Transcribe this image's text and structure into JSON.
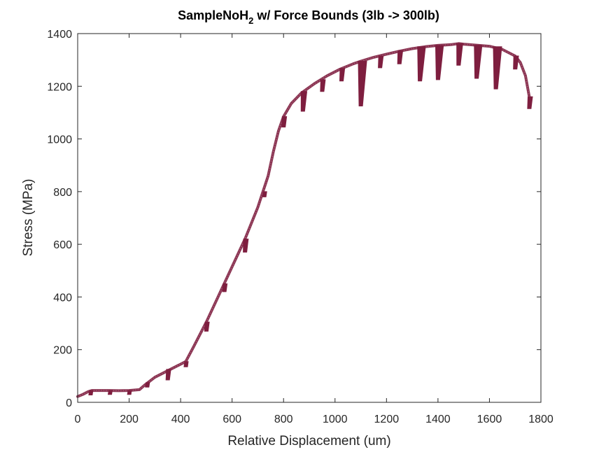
{
  "chart_data": {
    "type": "line",
    "title_parts": {
      "before_sub": "SampleNoH",
      "sub": "2",
      "after_sub": " w/ Force Bounds (3lb -> 300lb)"
    },
    "xlabel": "Relative Displacement (um)",
    "ylabel": "Stress (MPa)",
    "xlim": [
      0,
      1800
    ],
    "ylim": [
      0,
      1400
    ],
    "xticks": [
      0,
      200,
      400,
      600,
      800,
      1000,
      1200,
      1400,
      1600,
      1800
    ],
    "yticks": [
      0,
      200,
      400,
      600,
      800,
      1000,
      1200,
      1400
    ],
    "xtick_labels": [
      "0",
      "200",
      "400",
      "600",
      "800",
      "1000",
      "1200",
      "1400",
      "1600",
      "1800"
    ],
    "ytick_labels": [
      "0",
      "200",
      "400",
      "600",
      "800",
      "1000",
      "1200",
      "1400"
    ],
    "grid": false,
    "legend": "none",
    "series": [
      {
        "color": "#7e1e3f",
        "x": [
          0,
          20,
          40,
          55,
          80,
          120,
          160,
          200,
          240,
          260,
          300,
          350,
          380,
          420,
          450,
          500,
          550,
          600,
          650,
          700,
          740,
          760,
          780,
          800,
          830,
          870,
          920,
          970,
          1020,
          1070,
          1100,
          1150,
          1200,
          1250,
          1300,
          1350,
          1400,
          1450,
          1480,
          1500,
          1550,
          1600,
          1650,
          1700,
          1720,
          1740,
          1755
        ],
        "y": [
          22,
          30,
          40,
          45,
          45,
          45,
          44,
          45,
          48,
          65,
          95,
          120,
          135,
          155,
          210,
          305,
          410,
          515,
          620,
          740,
          860,
          950,
          1030,
          1085,
          1135,
          1175,
          1210,
          1240,
          1265,
          1285,
          1295,
          1310,
          1322,
          1333,
          1343,
          1350,
          1355,
          1358,
          1362,
          1360,
          1356,
          1352,
          1340,
          1315,
          1290,
          1240,
          1160
        ]
      }
    ],
    "unloading_dips": [
      {
        "x": 50,
        "from": 45,
        "to": 28
      },
      {
        "x": 125,
        "from": 45,
        "to": 30
      },
      {
        "x": 200,
        "from": 45,
        "to": 30
      },
      {
        "x": 270,
        "from": 75,
        "to": 58
      },
      {
        "x": 350,
        "from": 125,
        "to": 85
      },
      {
        "x": 420,
        "from": 155,
        "to": 135
      },
      {
        "x": 500,
        "from": 305,
        "to": 270
      },
      {
        "x": 570,
        "from": 450,
        "to": 420
      },
      {
        "x": 650,
        "from": 620,
        "to": 570
      },
      {
        "x": 725,
        "from": 800,
        "to": 780
      },
      {
        "x": 800,
        "from": 1085,
        "to": 1045
      },
      {
        "x": 875,
        "from": 1180,
        "to": 1105
      },
      {
        "x": 950,
        "from": 1225,
        "to": 1180
      },
      {
        "x": 1025,
        "from": 1268,
        "to": 1220
      },
      {
        "x": 1100,
        "from": 1295,
        "to": 1125
      },
      {
        "x": 1175,
        "from": 1315,
        "to": 1270
      },
      {
        "x": 1250,
        "from": 1335,
        "to": 1285
      },
      {
        "x": 1330,
        "from": 1350,
        "to": 1220
      },
      {
        "x": 1400,
        "from": 1355,
        "to": 1225
      },
      {
        "x": 1480,
        "from": 1362,
        "to": 1280
      },
      {
        "x": 1550,
        "from": 1356,
        "to": 1230
      },
      {
        "x": 1625,
        "from": 1350,
        "to": 1190
      },
      {
        "x": 1700,
        "from": 1315,
        "to": 1265
      },
      {
        "x": 1755,
        "from": 1160,
        "to": 1115
      }
    ]
  }
}
